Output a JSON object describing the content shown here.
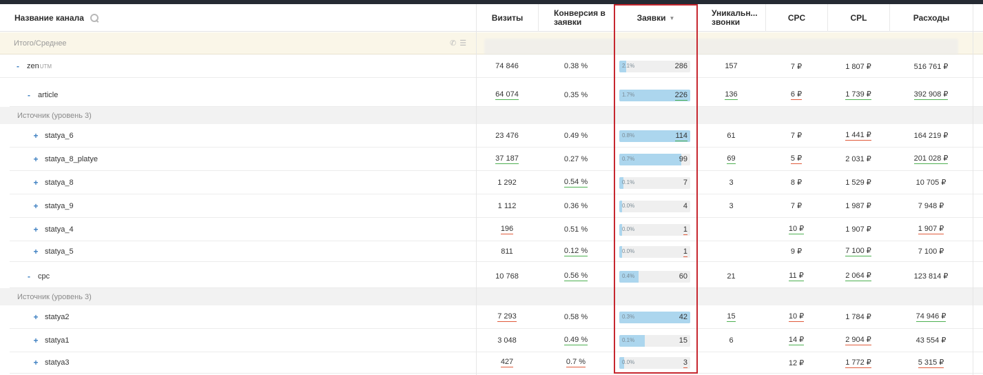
{
  "header": {
    "channel": "Название канала",
    "cols": {
      "visits": "Визиты",
      "conv": "Конверсия в заявки",
      "leads": "Заявки",
      "calls": "Уникальн... звонки",
      "cpc": "CPC",
      "cpl": "CPL",
      "spend": "Расходы"
    },
    "sort_indicator": "▼"
  },
  "summary": {
    "label": "Итого/Среднее",
    "phone_icon": "phone-icon",
    "list_icon": "list-icon"
  },
  "section_label": "Источник (уровень 3)",
  "colors": {
    "bar_fill": "#acd6ee",
    "highlight": "#c6262e",
    "underline_good": "#4caf50",
    "underline_bad": "#e05a3a"
  },
  "rows": [
    {
      "id": "zen",
      "toggle": "-",
      "name": "zen",
      "sup": "UTM",
      "visits": "74 846",
      "conv": "0.38 %",
      "lead_pct": "2.1%",
      "lead_fill": 0.1,
      "leads": "286",
      "calls": "157",
      "cpc": "7 ₽",
      "cpl": "1 807 ₽",
      "spend": "516 761 ₽"
    },
    {
      "id": "article",
      "toggle": "-",
      "name": "article",
      "visits": "64 074",
      "conv": "0.35 %",
      "lead_pct": "1.7%",
      "lead_fill": 1.0,
      "leads": "226",
      "calls": "136",
      "cpc": "6 ₽",
      "cpl": "1 739 ₽",
      "spend": "392 908 ₽"
    },
    {
      "id": "statya_6",
      "toggle": "+",
      "name": "statya_6",
      "visits": "23 476",
      "conv": "0.49 %",
      "lead_pct": "0.8%",
      "lead_fill": 1.0,
      "leads": "114",
      "calls": "61",
      "cpc": "7 ₽",
      "cpl": "1 441 ₽",
      "spend": "164 219 ₽"
    },
    {
      "id": "statya_8_platye",
      "toggle": "+",
      "name": "statya_8_platye",
      "visits": "37 187",
      "conv": "0.27 %",
      "lead_pct": "0.7%",
      "lead_fill": 0.87,
      "leads": "99",
      "calls": "69",
      "cpc": "5 ₽",
      "cpl": "2 031 ₽",
      "spend": "201 028 ₽"
    },
    {
      "id": "statya_8",
      "toggle": "+",
      "name": "statya_8",
      "visits": "1 292",
      "conv": "0.54 %",
      "lead_pct": "0.1%",
      "lead_fill": 0.06,
      "leads": "7",
      "calls": "3",
      "cpc": "8 ₽",
      "cpl": "1 529 ₽",
      "spend": "10 705 ₽"
    },
    {
      "id": "statya_9",
      "toggle": "+",
      "name": "statya_9",
      "visits": "1 112",
      "conv": "0.36 %",
      "lead_pct": "0.0%",
      "lead_fill": 0.035,
      "leads": "4",
      "calls": "3",
      "cpc": "7 ₽",
      "cpl": "1 987 ₽",
      "spend": "7 948 ₽"
    },
    {
      "id": "statya_4",
      "toggle": "+",
      "name": "statya_4",
      "visits": "196",
      "conv": "0.51 %",
      "lead_pct": "0.0%",
      "lead_fill": 0.01,
      "leads": "1",
      "calls": "",
      "cpc": "10 ₽",
      "cpl": "1 907 ₽",
      "spend": "1 907 ₽"
    },
    {
      "id": "statya_5",
      "toggle": "+",
      "name": "statya_5",
      "visits": "811",
      "conv": "0.12 %",
      "lead_pct": "0.0%",
      "lead_fill": 0.01,
      "leads": "1",
      "calls": "",
      "cpc": "9 ₽",
      "cpl": "7 100 ₽",
      "spend": "7 100 ₽"
    },
    {
      "id": "cpc",
      "toggle": "-",
      "name": "cpc",
      "visits": "10 768",
      "conv": "0.56 %",
      "lead_pct": "0.4%",
      "lead_fill": 0.27,
      "leads": "60",
      "calls": "21",
      "cpc": "11 ₽",
      "cpl": "2 064 ₽",
      "spend": "123 814 ₽"
    },
    {
      "id": "statya2",
      "toggle": "+",
      "name": "statya2",
      "visits": "7 293",
      "conv": "0.58 %",
      "lead_pct": "0.3%",
      "lead_fill": 1.0,
      "leads": "42",
      "calls": "15",
      "cpc": "10 ₽",
      "cpl": "1 784 ₽",
      "spend": "74 946 ₽"
    },
    {
      "id": "statya1",
      "toggle": "+",
      "name": "statya1",
      "visits": "3 048",
      "conv": "0.49 %",
      "lead_pct": "0.1%",
      "lead_fill": 0.36,
      "leads": "15",
      "calls": "6",
      "cpc": "14 ₽",
      "cpl": "2 904 ₽",
      "spend": "43 554 ₽"
    },
    {
      "id": "statya3",
      "toggle": "+",
      "name": "statya3",
      "visits": "427",
      "conv": "0.7 %",
      "lead_pct": "0.0%",
      "lead_fill": 0.07,
      "leads": "3",
      "calls": "",
      "cpc": "12 ₽",
      "cpl": "1 772 ₽",
      "spend": "5 315 ₽"
    }
  ]
}
